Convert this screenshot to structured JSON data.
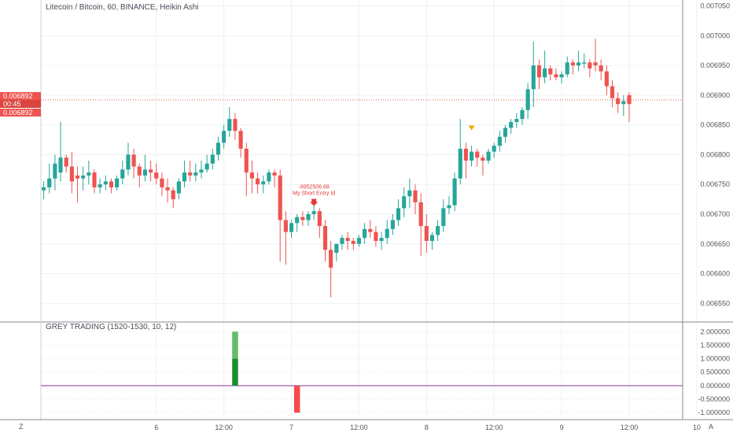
{
  "colors": {
    "up": "#26a69a",
    "down": "#ef5350",
    "grid": "#eef0f3",
    "axis": "#555555",
    "priceline": "#ef5350",
    "arrow": "#f2a900",
    "hist_up_light": "#66bb6a",
    "hist_up_dark": "#1b8f2e",
    "hist_down": "#f44b4b",
    "zero_line": "#9c5fb5"
  },
  "chart_data": [
    {
      "type": "candlestick",
      "title": "Litecoin / Bitcoin, 60, BINANCE, Heikin Ashi",
      "x_ticks": [
        {
          "label": "6",
          "bar": 20
        },
        {
          "label": "12:00",
          "bar": 32
        },
        {
          "label": "7",
          "bar": 44
        },
        {
          "label": "12:00",
          "bar": 56
        },
        {
          "label": "8",
          "bar": 68
        },
        {
          "label": "12:00",
          "bar": 80
        },
        {
          "label": "9",
          "bar": 92
        },
        {
          "label": "12:00",
          "bar": 104
        },
        {
          "label": "10",
          "bar": 116
        }
      ],
      "y_ticks": [
        "0.007050",
        "0.007000",
        "0.006950",
        "0.006900",
        "0.006850",
        "0.006800",
        "0.006750",
        "0.006700",
        "0.006650",
        "0.006600",
        "0.006550"
      ],
      "ylim": [
        0.00652,
        0.00706
      ],
      "bars_visible": 114,
      "ohlc": [
        [
          0.00674,
          0.006755,
          0.006725,
          0.006745
        ],
        [
          0.006745,
          0.006785,
          0.006735,
          0.00676
        ],
        [
          0.00676,
          0.0068,
          0.00674,
          0.006785
        ],
        [
          0.00677,
          0.006855,
          0.006755,
          0.006795
        ],
        [
          0.006795,
          0.0068,
          0.00677,
          0.00678
        ],
        [
          0.00678,
          0.006805,
          0.006735,
          0.006755
        ],
        [
          0.006765,
          0.00678,
          0.00672,
          0.00676
        ],
        [
          0.00676,
          0.00678,
          0.00674,
          0.006765
        ],
        [
          0.006765,
          0.00679,
          0.00675,
          0.00677
        ],
        [
          0.00677,
          0.006775,
          0.006735,
          0.006745
        ],
        [
          0.006745,
          0.00676,
          0.006735,
          0.00675
        ],
        [
          0.00675,
          0.006765,
          0.00674,
          0.006755
        ],
        [
          0.006755,
          0.00676,
          0.006735,
          0.006745
        ],
        [
          0.006745,
          0.006765,
          0.00674,
          0.00676
        ],
        [
          0.00676,
          0.00679,
          0.00675,
          0.006775
        ],
        [
          0.006775,
          0.00682,
          0.006765,
          0.0068
        ],
        [
          0.0068,
          0.00681,
          0.00676,
          0.00678
        ],
        [
          0.00678,
          0.006785,
          0.006745,
          0.006765
        ],
        [
          0.006765,
          0.0068,
          0.006755,
          0.006775
        ],
        [
          0.006775,
          0.00679,
          0.006755,
          0.00677
        ],
        [
          0.00677,
          0.006785,
          0.00675,
          0.00676
        ],
        [
          0.00676,
          0.00677,
          0.00673,
          0.006745
        ],
        [
          0.006745,
          0.00676,
          0.00672,
          0.00674
        ],
        [
          0.00674,
          0.006745,
          0.00671,
          0.006725
        ],
        [
          0.006735,
          0.00676,
          0.006725,
          0.006755
        ],
        [
          0.006755,
          0.00679,
          0.006745,
          0.00677
        ],
        [
          0.00677,
          0.00679,
          0.006755,
          0.006765
        ],
        [
          0.006765,
          0.006785,
          0.006755,
          0.00677
        ],
        [
          0.00677,
          0.00679,
          0.00676,
          0.006775
        ],
        [
          0.006775,
          0.0068,
          0.00677,
          0.006785
        ],
        [
          0.006785,
          0.00681,
          0.006775,
          0.0068
        ],
        [
          0.0068,
          0.00683,
          0.00679,
          0.00682
        ],
        [
          0.00682,
          0.00685,
          0.00681,
          0.00684
        ],
        [
          0.00684,
          0.00688,
          0.00683,
          0.00686
        ],
        [
          0.00686,
          0.00687,
          0.006825,
          0.00684
        ],
        [
          0.00684,
          0.006845,
          0.006795,
          0.00681
        ],
        [
          0.00681,
          0.00682,
          0.00673,
          0.00677
        ],
        [
          0.00677,
          0.00679,
          0.006735,
          0.00676
        ],
        [
          0.00676,
          0.00677,
          0.006735,
          0.00675
        ],
        [
          0.00675,
          0.006765,
          0.006735,
          0.006755
        ],
        [
          0.006755,
          0.006775,
          0.00675,
          0.00677
        ],
        [
          0.00677,
          0.006775,
          0.006745,
          0.006765
        ],
        [
          0.006765,
          0.006775,
          0.00662,
          0.00669
        ],
        [
          0.00669,
          0.006705,
          0.006615,
          0.00667
        ],
        [
          0.00667,
          0.00669,
          0.00666,
          0.006685
        ],
        [
          0.006685,
          0.0067,
          0.00667,
          0.006695
        ],
        [
          0.006695,
          0.006705,
          0.00668,
          0.00669
        ],
        [
          0.00669,
          0.006705,
          0.00668,
          0.0067
        ],
        [
          0.0067,
          0.006715,
          0.00669,
          0.006705
        ],
        [
          0.006705,
          0.00671,
          0.00666,
          0.00668
        ],
        [
          0.00668,
          0.00669,
          0.00662,
          0.00664
        ],
        [
          0.00664,
          0.006655,
          0.00656,
          0.00661
        ],
        [
          0.006635,
          0.00665,
          0.00662,
          0.00665
        ],
        [
          0.00665,
          0.006665,
          0.00664,
          0.00666
        ],
        [
          0.00666,
          0.00667,
          0.00664,
          0.006655
        ],
        [
          0.006655,
          0.00666,
          0.00664,
          0.00665
        ],
        [
          0.00665,
          0.006665,
          0.006645,
          0.00666
        ],
        [
          0.00666,
          0.006685,
          0.00665,
          0.006675
        ],
        [
          0.006675,
          0.00669,
          0.00666,
          0.00667
        ],
        [
          0.00667,
          0.00668,
          0.006645,
          0.006655
        ],
        [
          0.006655,
          0.00667,
          0.00664,
          0.00666
        ],
        [
          0.00666,
          0.00669,
          0.00665,
          0.006675
        ],
        [
          0.006675,
          0.0067,
          0.006665,
          0.00669
        ],
        [
          0.00669,
          0.006725,
          0.00668,
          0.00671
        ],
        [
          0.00671,
          0.006745,
          0.006695,
          0.00673
        ],
        [
          0.00673,
          0.00676,
          0.00671,
          0.00674
        ],
        [
          0.00674,
          0.00675,
          0.0067,
          0.00672
        ],
        [
          0.00672,
          0.006735,
          0.00663,
          0.00668
        ],
        [
          0.00668,
          0.0067,
          0.006635,
          0.006655
        ],
        [
          0.006655,
          0.00667,
          0.00664,
          0.006665
        ],
        [
          0.006665,
          0.00669,
          0.006655,
          0.00668
        ],
        [
          0.00668,
          0.006725,
          0.00667,
          0.00671
        ],
        [
          0.00671,
          0.00673,
          0.0067,
          0.006715
        ],
        [
          0.006715,
          0.00677,
          0.006705,
          0.00676
        ],
        [
          0.00676,
          0.00686,
          0.00675,
          0.00681
        ],
        [
          0.00681,
          0.00682,
          0.00676,
          0.00679
        ],
        [
          0.00679,
          0.006815,
          0.00678,
          0.006805
        ],
        [
          0.006805,
          0.00681,
          0.00678,
          0.006795
        ],
        [
          0.006795,
          0.0068,
          0.006765,
          0.00679
        ],
        [
          0.00679,
          0.00681,
          0.006785,
          0.006805
        ],
        [
          0.006805,
          0.00682,
          0.006795,
          0.006815
        ],
        [
          0.006815,
          0.00684,
          0.006805,
          0.00683
        ],
        [
          0.00683,
          0.00685,
          0.00682,
          0.006845
        ],
        [
          0.006845,
          0.00686,
          0.006835,
          0.006855
        ],
        [
          0.006855,
          0.00687,
          0.006845,
          0.00686
        ],
        [
          0.00686,
          0.00688,
          0.00685,
          0.006875
        ],
        [
          0.006875,
          0.00692,
          0.00686,
          0.00691
        ],
        [
          0.00691,
          0.00699,
          0.00688,
          0.00695
        ],
        [
          0.00695,
          0.00696,
          0.00691,
          0.00693
        ],
        [
          0.00693,
          0.006975,
          0.00692,
          0.006945
        ],
        [
          0.006945,
          0.00695,
          0.006925,
          0.006935
        ],
        [
          0.006935,
          0.006945,
          0.006925,
          0.00693
        ],
        [
          0.00693,
          0.00694,
          0.00692,
          0.006935
        ],
        [
          0.006935,
          0.006965,
          0.00693,
          0.006955
        ],
        [
          0.006955,
          0.00696,
          0.006935,
          0.00695
        ],
        [
          0.00695,
          0.006975,
          0.00694,
          0.006955
        ],
        [
          0.006955,
          0.00697,
          0.006945,
          0.006955
        ],
        [
          0.006955,
          0.00696,
          0.00693,
          0.006945
        ],
        [
          0.006955,
          0.006995,
          0.00694,
          0.00695
        ],
        [
          0.00695,
          0.00696,
          0.006925,
          0.00694
        ],
        [
          0.00694,
          0.00695,
          0.0069,
          0.006915
        ],
        [
          0.006915,
          0.006925,
          0.00688,
          0.006895
        ],
        [
          0.006895,
          0.006905,
          0.00687,
          0.006885
        ],
        [
          0.006885,
          0.0069,
          0.006865,
          0.00689
        ],
        [
          0.0069,
          0.006905,
          0.006855,
          0.006885
        ]
      ],
      "last_price": {
        "value": 0.006892,
        "label_top": "0.006892",
        "countdown": "00:45",
        "label_bottom": "0.006892"
      },
      "signal_marker": {
        "bar": 48,
        "price": 0.006715,
        "text_top": "-9952506.68",
        "text_bottom": "My Short Entry Id"
      },
      "arrow_marker": {
        "bar": 76,
        "price": 0.006845
      }
    },
    {
      "type": "bar",
      "title": "GREY TRADING (1520-1530, 10, 12)",
      "ylim": [
        -1.2,
        2.3
      ],
      "y_ticks": [
        "2.000000",
        "1.500000",
        "1.000000",
        "0.500000",
        "0.000000",
        "-0.500000",
        "-1.000000"
      ],
      "bars": [
        {
          "bar": 34,
          "value": 2.0
        },
        {
          "bar": 45,
          "value": -1.0
        }
      ]
    }
  ],
  "corner_left": "Z",
  "corner_right": "A"
}
